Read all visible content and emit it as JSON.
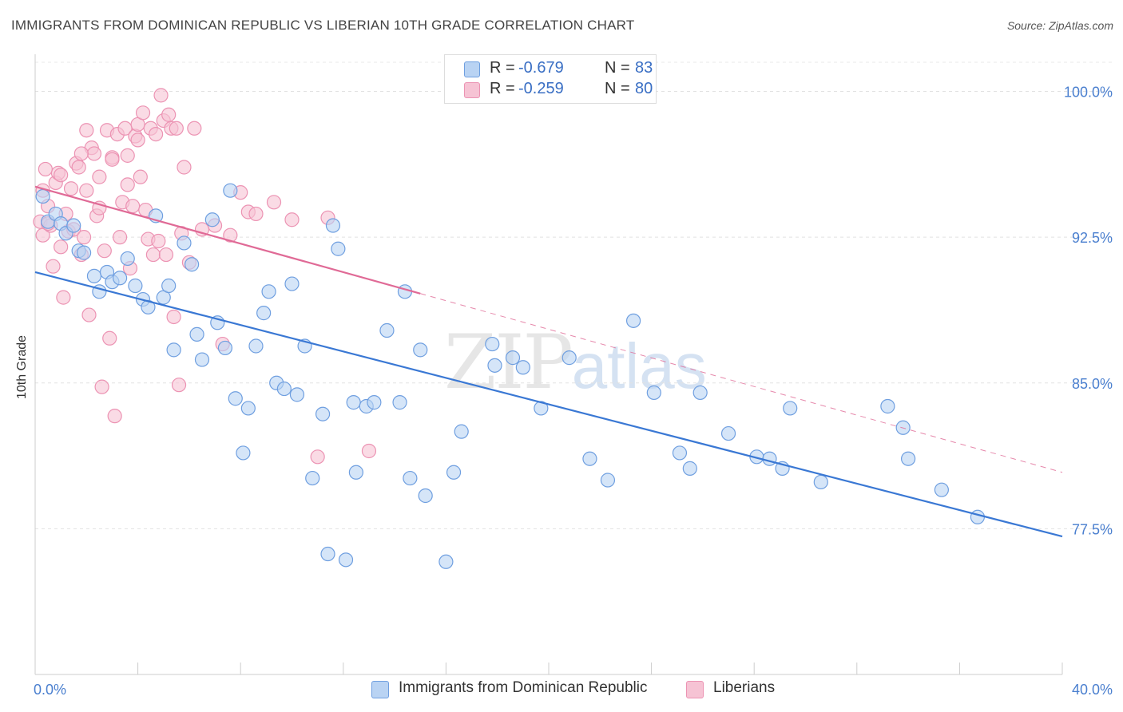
{
  "title": "IMMIGRANTS FROM DOMINICAN REPUBLIC VS LIBERIAN 10TH GRADE CORRELATION CHART",
  "source": "Source: ZipAtlas.com",
  "watermark": {
    "zip": "ZIP",
    "atlas": "atlas"
  },
  "colors": {
    "blue": "#3a78d4",
    "blue_fill": "#b9d3f3",
    "blue_stroke": "#6f9fe0",
    "pink": "#e06a96",
    "pink_fill": "#f6c3d4",
    "pink_stroke": "#ec93b3",
    "tick_text": "#4a7fcf"
  },
  "stats": [
    {
      "r_label": "R = ",
      "r_value": "-0.679",
      "n_label": "N = ",
      "n_value": "83",
      "series": "blue"
    },
    {
      "r_label": "R = ",
      "r_value": "-0.259",
      "n_label": "N = ",
      "n_value": "80",
      "series": "pink"
    }
  ],
  "legend": [
    {
      "label": "Immigrants from Dominican Republic",
      "series": "blue"
    },
    {
      "label": "Liberians",
      "series": "pink"
    }
  ],
  "chart_data": {
    "type": "scatter",
    "title": "IMMIGRANTS FROM DOMINICAN REPUBLIC VS LIBERIAN 10TH GRADE CORRELATION CHART",
    "xlabel": "",
    "ylabel": "10th Grade",
    "xlim": [
      0,
      40
    ],
    "ylim": [
      70.0,
      101.5
    ],
    "x_tick_labels": [
      "0.0%",
      "40.0%"
    ],
    "y_ticks": [
      77.5,
      85.0,
      92.5,
      100.0
    ],
    "y_tick_labels": [
      "77.5%",
      "85.0%",
      "92.5%",
      "100.0%"
    ],
    "grid": true,
    "legend_position": "bottom",
    "series": [
      {
        "name": "Immigrants from Dominican Republic",
        "color": "#3a78d4",
        "trend": {
          "x": [
            0,
            40
          ],
          "y": [
            90.7,
            77.1
          ],
          "dashed_to": null
        },
        "points": [
          [
            0.3,
            94.6
          ],
          [
            0.5,
            93.3
          ],
          [
            0.8,
            93.7
          ],
          [
            1.0,
            93.2
          ],
          [
            1.2,
            92.7
          ],
          [
            1.5,
            93.1
          ],
          [
            1.7,
            91.8
          ],
          [
            1.9,
            91.7
          ],
          [
            2.3,
            90.5
          ],
          [
            2.5,
            89.7
          ],
          [
            2.8,
            90.7
          ],
          [
            3.0,
            90.2
          ],
          [
            3.3,
            90.4
          ],
          [
            3.6,
            91.4
          ],
          [
            3.9,
            90.0
          ],
          [
            4.2,
            89.3
          ],
          [
            4.4,
            88.9
          ],
          [
            4.7,
            93.6
          ],
          [
            5.0,
            89.4
          ],
          [
            5.2,
            90.0
          ],
          [
            5.4,
            86.7
          ],
          [
            5.8,
            92.2
          ],
          [
            6.1,
            91.1
          ],
          [
            6.3,
            87.5
          ],
          [
            6.5,
            86.2
          ],
          [
            6.9,
            93.4
          ],
          [
            7.1,
            88.1
          ],
          [
            7.4,
            86.8
          ],
          [
            7.6,
            94.9
          ],
          [
            7.8,
            84.2
          ],
          [
            8.1,
            81.4
          ],
          [
            8.3,
            83.7
          ],
          [
            8.6,
            86.9
          ],
          [
            8.9,
            88.6
          ],
          [
            9.1,
            89.7
          ],
          [
            9.4,
            85.0
          ],
          [
            9.7,
            84.7
          ],
          [
            10.0,
            90.1
          ],
          [
            10.2,
            84.4
          ],
          [
            10.5,
            86.9
          ],
          [
            10.8,
            80.1
          ],
          [
            11.2,
            83.4
          ],
          [
            11.4,
            76.2
          ],
          [
            11.6,
            93.1
          ],
          [
            11.8,
            91.9
          ],
          [
            12.1,
            75.9
          ],
          [
            12.4,
            84.0
          ],
          [
            12.5,
            80.4
          ],
          [
            12.9,
            83.8
          ],
          [
            13.2,
            84.0
          ],
          [
            13.7,
            87.7
          ],
          [
            14.2,
            84.0
          ],
          [
            14.4,
            89.7
          ],
          [
            14.6,
            80.1
          ],
          [
            15.0,
            86.7
          ],
          [
            15.2,
            79.2
          ],
          [
            16.0,
            75.8
          ],
          [
            16.3,
            80.4
          ],
          [
            16.6,
            82.5
          ],
          [
            17.8,
            87.0
          ],
          [
            17.9,
            85.9
          ],
          [
            18.6,
            86.3
          ],
          [
            19.0,
            85.8
          ],
          [
            19.7,
            83.7
          ],
          [
            20.8,
            86.3
          ],
          [
            21.6,
            81.1
          ],
          [
            22.3,
            80.0
          ],
          [
            23.3,
            88.2
          ],
          [
            24.1,
            84.5
          ],
          [
            25.1,
            81.4
          ],
          [
            25.5,
            80.6
          ],
          [
            25.9,
            84.5
          ],
          [
            27.0,
            82.4
          ],
          [
            28.1,
            81.2
          ],
          [
            28.6,
            81.1
          ],
          [
            29.1,
            80.6
          ],
          [
            29.4,
            83.7
          ],
          [
            30.6,
            79.9
          ],
          [
            33.2,
            83.8
          ],
          [
            33.8,
            82.7
          ],
          [
            34.0,
            81.1
          ],
          [
            35.3,
            79.5
          ],
          [
            36.7,
            78.1
          ]
        ]
      },
      {
        "name": "Liberians",
        "color": "#e06a96",
        "trend": {
          "x": [
            0,
            15
          ],
          "y": [
            95.1,
            89.6
          ],
          "dashed_to": [
            40,
            80.4
          ]
        },
        "points": [
          [
            0.2,
            93.3
          ],
          [
            0.3,
            92.6
          ],
          [
            0.3,
            94.9
          ],
          [
            0.5,
            94.1
          ],
          [
            0.6,
            93.1
          ],
          [
            0.8,
            95.3
          ],
          [
            0.9,
            95.8
          ],
          [
            1.0,
            95.7
          ],
          [
            1.1,
            89.4
          ],
          [
            1.2,
            93.7
          ],
          [
            1.3,
            92.8
          ],
          [
            1.5,
            92.9
          ],
          [
            1.6,
            96.3
          ],
          [
            1.7,
            96.1
          ],
          [
            1.8,
            91.6
          ],
          [
            1.9,
            92.5
          ],
          [
            2.0,
            94.9
          ],
          [
            2.1,
            88.5
          ],
          [
            2.2,
            97.1
          ],
          [
            2.3,
            96.8
          ],
          [
            2.4,
            93.6
          ],
          [
            2.5,
            95.6
          ],
          [
            2.6,
            84.8
          ],
          [
            2.7,
            91.8
          ],
          [
            2.8,
            98.0
          ],
          [
            2.9,
            87.3
          ],
          [
            3.0,
            96.6
          ],
          [
            3.1,
            83.3
          ],
          [
            3.2,
            97.8
          ],
          [
            3.3,
            92.5
          ],
          [
            3.4,
            94.3
          ],
          [
            3.5,
            98.1
          ],
          [
            3.6,
            96.7
          ],
          [
            3.7,
            90.9
          ],
          [
            3.8,
            94.1
          ],
          [
            3.9,
            97.7
          ],
          [
            4.0,
            98.3
          ],
          [
            4.1,
            95.6
          ],
          [
            4.2,
            98.9
          ],
          [
            4.3,
            93.9
          ],
          [
            4.4,
            92.4
          ],
          [
            4.5,
            98.1
          ],
          [
            4.6,
            91.6
          ],
          [
            4.7,
            97.8
          ],
          [
            4.8,
            92.3
          ],
          [
            4.9,
            99.8
          ],
          [
            5.0,
            98.5
          ],
          [
            5.1,
            91.6
          ],
          [
            5.2,
            98.8
          ],
          [
            5.3,
            98.1
          ],
          [
            5.4,
            88.4
          ],
          [
            5.5,
            98.1
          ],
          [
            5.6,
            84.9
          ],
          [
            5.7,
            92.7
          ],
          [
            5.8,
            96.1
          ],
          [
            6.2,
            98.1
          ],
          [
            6.5,
            92.9
          ],
          [
            7.0,
            93.1
          ],
          [
            7.3,
            87.0
          ],
          [
            7.6,
            92.6
          ],
          [
            8.0,
            94.8
          ],
          [
            8.3,
            93.8
          ],
          [
            8.6,
            93.7
          ],
          [
            9.3,
            94.3
          ],
          [
            10.0,
            93.4
          ],
          [
            11.0,
            81.2
          ],
          [
            11.4,
            93.5
          ],
          [
            13.0,
            81.5
          ],
          [
            0.4,
            96.0
          ],
          [
            0.7,
            91.0
          ],
          [
            1.4,
            95.0
          ],
          [
            2.0,
            98.0
          ],
          [
            3.0,
            96.5
          ],
          [
            4.0,
            97.5
          ],
          [
            1.0,
            92.0
          ],
          [
            0.5,
            93.2
          ],
          [
            2.5,
            94.0
          ],
          [
            1.8,
            96.8
          ],
          [
            3.6,
            95.2
          ],
          [
            6.0,
            91.2
          ]
        ]
      }
    ]
  }
}
